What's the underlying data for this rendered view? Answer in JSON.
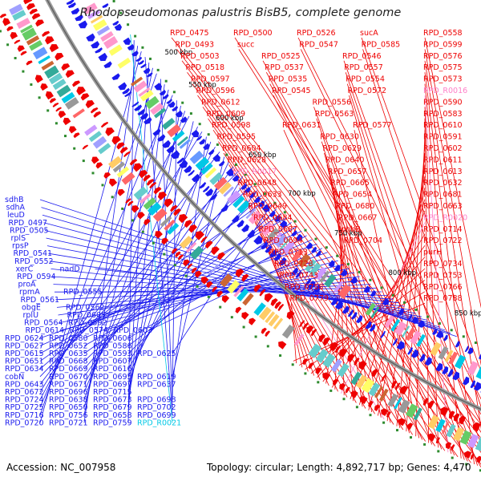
{
  "title": "Rhodopseudomonas palustris BisB5, complete genome",
  "footer": {
    "accession": "Accession: NC_007958",
    "summary": "Topology: circular; Length: 4,892,717 bp; Genes: 4,470"
  },
  "colors": {
    "forward": "#ee0000",
    "reverse": "#1a1aee",
    "rna": "#ff80c8",
    "trna": "#00c8e6",
    "backbone": "#808080",
    "tick": "#2e8b2e"
  },
  "ticks": [
    "500 kbp",
    "550 kbp",
    "600 kbp",
    "650 kbp",
    "700 kbp",
    "750 kbp",
    "800 kbp",
    "850 kbp"
  ],
  "labels_right": [
    "RPD_0475",
    "RPD_0500",
    "RPD_0526",
    "sucA",
    "RPD_0558",
    "RPD_0493",
    "succ",
    "RPD_0547",
    "RPD_0585",
    "RPD_0599",
    "RPD_0503",
    "RPD_0525",
    "RPD_0546",
    "RPD_0576",
    "RPD_0518",
    "RPD_0537",
    "RPD_0557",
    "RPD_0575",
    "RPD_0597",
    "RPD_0535",
    "RPD_0554",
    "RPD_0573",
    "RPD_0596",
    "RPD_0545",
    "RPD_0572",
    "RPD_R0016",
    "RPD_0612",
    "RPD_0556",
    "RPD_0590",
    "RPD_0609",
    "RPD_0563",
    "RPD_0583",
    "RPD_0598",
    "RPD_0631",
    "RPD_0577",
    "RPD_0610",
    "RPD_0595",
    "RPD_0630",
    "RPD_0591",
    "RPD_0604",
    "RPD_0629",
    "RPD_0602",
    "RPD_0628",
    "RPD_0640",
    "RPD_0611",
    "RPD_R0017",
    "RPD_0657",
    "RPD_0613",
    "RPD_0648",
    "RPD_0665",
    "RPD_0632",
    "RPD_0633",
    "RPD_0654",
    "RPD_0681",
    "RPD_0649",
    "RPD_0680",
    "RPD_0663",
    "RPD_0684",
    "RPD_0667",
    "RPD_R0020",
    "RPD_0687",
    "phhB",
    "RPD_0714",
    "RPD_0694",
    "RPD_0704",
    "RPD_0722",
    "RPD_0713",
    "purH",
    "RPD_0728",
    "RPD_0734",
    "RPD_0743",
    "RPD_0753",
    "RPD_0758",
    "RPD_0766",
    "RPD_0779",
    "RPD_0788"
  ],
  "labels_left": [
    "sdhB",
    "sdhA",
    "leuD",
    "RPD_0497",
    "RPD_0505",
    "rplS",
    "rpsP",
    "RPD_0541",
    "RPD_0552",
    "xerC",
    "nadD",
    "RPD_0594",
    "proA",
    "rpmA",
    "RPD_0555",
    "RPD_0561",
    "obgE",
    "RPD_0562",
    "rplU",
    "RPD_0605",
    "RPD_0564",
    "RPD_0592",
    "RPD_0614",
    "RPD_0574",
    "RPD_0603",
    "RPD_0624",
    "RPD_0580",
    "RPD_0606",
    "RPD_0627",
    "RPD_0652",
    "RPD_0586",
    "RPD_0615",
    "RPD_0635",
    "RPD_0593",
    "RPD_0625",
    "RPD_0651",
    "RPD_0668",
    "RPD_0607",
    "RPD_0634",
    "RPD_0669",
    "RPD_0616",
    "cobN",
    "RPD_0670",
    "RPD_0695",
    "RPD_0619",
    "RPD_0643",
    "RPD_0671",
    "RPD_0697",
    "RPD_0637",
    "RPD_0672",
    "RPD_0696",
    "RPD_0715",
    "RPD_0724",
    "RPD_0638",
    "RPD_0673",
    "RPD_0698",
    "RPD_0725",
    "RPD_0650",
    "RPD_0679",
    "RPD_0702",
    "RPD_0716",
    "RPD_0756",
    "RPD_0658",
    "RPD_0699",
    "RPD_0720",
    "RPD_0721",
    "RPD_0759",
    "RPD_R0021"
  ]
}
